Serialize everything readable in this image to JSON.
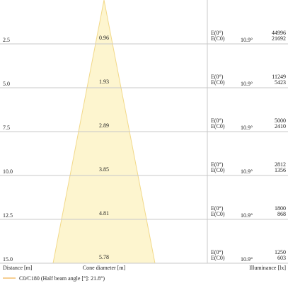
{
  "rows": [
    {
      "distance": "2.5",
      "diameter": "0.96",
      "e0_label": "E(0°)",
      "ec0_label": "E(C0)",
      "angle": "10.9°",
      "e0": "44996",
      "ec0": "21692"
    },
    {
      "distance": "5.0",
      "diameter": "1.93",
      "e0_label": "E(0°)",
      "ec0_label": "E(C0)",
      "angle": "10.9°",
      "e0": "11249",
      "ec0": "5423"
    },
    {
      "distance": "7.5",
      "diameter": "2.89",
      "e0_label": "E(0°)",
      "ec0_label": "E(C0)",
      "angle": "10.9°",
      "e0": "5000",
      "ec0": "2410"
    },
    {
      "distance": "10.0",
      "diameter": "3.85",
      "e0_label": "E(0°)",
      "ec0_label": "E(C0)",
      "angle": "10.9°",
      "e0": "2812",
      "ec0": "1356"
    },
    {
      "distance": "12.5",
      "diameter": "4.81",
      "e0_label": "E(0°)",
      "ec0_label": "E(C0)",
      "angle": "10.9°",
      "e0": "1800",
      "ec0": "868"
    },
    {
      "distance": "15.0",
      "diameter": "5.78",
      "e0_label": "E(0°)",
      "ec0_label": "E(C0)",
      "angle": "10.9°",
      "e0": "1250",
      "ec0": "603"
    }
  ],
  "footer": {
    "distance": "Distance [m]",
    "diameter": "Cone diameter [m]",
    "illuminance": "Illuminance [lx]"
  },
  "legend": "C0/C180 (Half beam angle [°]: 21.8°)"
}
